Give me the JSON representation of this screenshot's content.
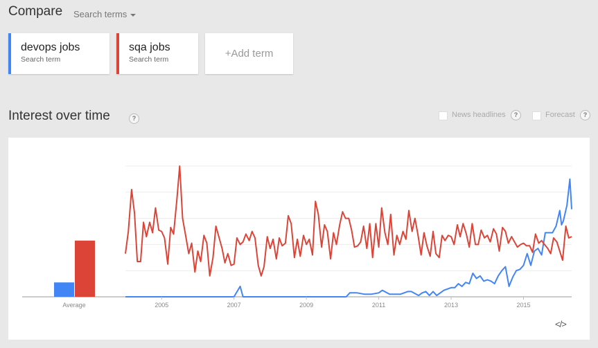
{
  "header": {
    "title": "Compare",
    "search_terms_dropdown": "Search terms"
  },
  "terms": [
    {
      "name": "devops jobs",
      "subtitle": "Search term",
      "color": "#4285f4"
    },
    {
      "name": "sqa jobs",
      "subtitle": "Search term",
      "color": "#db4437"
    }
  ],
  "add_term": {
    "plus": "+",
    "label": "Add term"
  },
  "section": {
    "title": "Interest over time",
    "help": "?",
    "news_headlines": "News headlines",
    "forecast": "Forecast"
  },
  "embed": "</>",
  "chart_data": [
    {
      "type": "bar",
      "categories": [
        "Average"
      ],
      "series": [
        {
          "name": "devops jobs",
          "values": [
            11
          ],
          "color": "#4285f4"
        },
        {
          "name": "sqa jobs",
          "values": [
            43
          ],
          "color": "#db4437"
        }
      ],
      "ylim": [
        0,
        100
      ]
    },
    {
      "type": "line",
      "x_ticks": [
        "2005",
        "2007",
        "2009",
        "2011",
        "2013",
        "2015"
      ],
      "x_range": [
        2004.0,
        2016.33
      ],
      "ylim": [
        0,
        100
      ],
      "grid": true,
      "series": [
        {
          "name": "devops jobs",
          "color": "#4285f4",
          "points": [
            [
              2004.0,
              0
            ],
            [
              2006.0,
              0
            ],
            [
              2007.0,
              0
            ],
            [
              2007.17,
              8
            ],
            [
              2007.25,
              0
            ],
            [
              2010.0,
              0
            ],
            [
              2010.1,
              0
            ],
            [
              2010.2,
              3
            ],
            [
              2010.4,
              3
            ],
            [
              2010.6,
              2
            ],
            [
              2010.8,
              2
            ],
            [
              2011.0,
              3
            ],
            [
              2011.1,
              5
            ],
            [
              2011.3,
              2
            ],
            [
              2011.6,
              2
            ],
            [
              2011.8,
              4
            ],
            [
              2011.9,
              4
            ],
            [
              2012.1,
              1
            ],
            [
              2012.2,
              3
            ],
            [
              2012.3,
              4
            ],
            [
              2012.4,
              1
            ],
            [
              2012.5,
              4
            ],
            [
              2012.6,
              1
            ],
            [
              2012.7,
              3
            ],
            [
              2012.8,
              5
            ],
            [
              2012.9,
              6
            ],
            [
              2013.0,
              7
            ],
            [
              2013.1,
              7
            ],
            [
              2013.2,
              10
            ],
            [
              2013.3,
              8
            ],
            [
              2013.4,
              11
            ],
            [
              2013.5,
              10
            ],
            [
              2013.6,
              18
            ],
            [
              2013.7,
              14
            ],
            [
              2013.8,
              16
            ],
            [
              2013.9,
              12
            ],
            [
              2014.0,
              13
            ],
            [
              2014.1,
              12
            ],
            [
              2014.2,
              10
            ],
            [
              2014.3,
              16
            ],
            [
              2014.4,
              20
            ],
            [
              2014.5,
              23
            ],
            [
              2014.6,
              8
            ],
            [
              2014.7,
              15
            ],
            [
              2014.8,
              20
            ],
            [
              2014.9,
              21
            ],
            [
              2015.0,
              24
            ],
            [
              2015.1,
              33
            ],
            [
              2015.2,
              24
            ],
            [
              2015.3,
              35
            ],
            [
              2015.4,
              37
            ],
            [
              2015.5,
              32
            ],
            [
              2015.6,
              49
            ],
            [
              2015.7,
              49
            ],
            [
              2015.8,
              49
            ],
            [
              2015.9,
              54
            ],
            [
              2016.0,
              66
            ],
            [
              2016.05,
              55
            ],
            [
              2016.1,
              58
            ],
            [
              2016.2,
              70
            ],
            [
              2016.28,
              90
            ],
            [
              2016.33,
              67
            ]
          ]
        },
        {
          "name": "sqa jobs",
          "color": "#db4437",
          "points": [
            [
              2004.0,
              33
            ],
            [
              2004.08,
              50
            ],
            [
              2004.17,
              82
            ],
            [
              2004.25,
              64
            ],
            [
              2004.33,
              27
            ],
            [
              2004.42,
              27
            ],
            [
              2004.5,
              57
            ],
            [
              2004.58,
              46
            ],
            [
              2004.67,
              57
            ],
            [
              2004.75,
              49
            ],
            [
              2004.83,
              68
            ],
            [
              2004.92,
              51
            ],
            [
              2005.0,
              50
            ],
            [
              2005.08,
              45
            ],
            [
              2005.17,
              25
            ],
            [
              2005.25,
              53
            ],
            [
              2005.33,
              48
            ],
            [
              2005.42,
              74
            ],
            [
              2005.5,
              100
            ],
            [
              2005.58,
              60
            ],
            [
              2005.67,
              46
            ],
            [
              2005.75,
              33
            ],
            [
              2005.83,
              41
            ],
            [
              2005.92,
              19
            ],
            [
              2006.0,
              35
            ],
            [
              2006.08,
              27
            ],
            [
              2006.17,
              47
            ],
            [
              2006.25,
              41
            ],
            [
              2006.33,
              16
            ],
            [
              2006.42,
              30
            ],
            [
              2006.5,
              54
            ],
            [
              2006.58,
              46
            ],
            [
              2006.67,
              37
            ],
            [
              2006.75,
              26
            ],
            [
              2006.83,
              33
            ],
            [
              2006.92,
              24
            ],
            [
              2007.0,
              25
            ],
            [
              2007.08,
              45
            ],
            [
              2007.17,
              40
            ],
            [
              2007.25,
              42
            ],
            [
              2007.33,
              48
            ],
            [
              2007.42,
              43
            ],
            [
              2007.5,
              50
            ],
            [
              2007.58,
              45
            ],
            [
              2007.67,
              24
            ],
            [
              2007.75,
              16
            ],
            [
              2007.83,
              23
            ],
            [
              2007.92,
              46
            ],
            [
              2008.0,
              37
            ],
            [
              2008.08,
              44
            ],
            [
              2008.17,
              29
            ],
            [
              2008.25,
              45
            ],
            [
              2008.33,
              39
            ],
            [
              2008.42,
              41
            ],
            [
              2008.5,
              62
            ],
            [
              2008.58,
              56
            ],
            [
              2008.67,
              30
            ],
            [
              2008.75,
              44
            ],
            [
              2008.83,
              31
            ],
            [
              2008.92,
              47
            ],
            [
              2009.0,
              40
            ],
            [
              2009.08,
              44
            ],
            [
              2009.17,
              32
            ],
            [
              2009.25,
              73
            ],
            [
              2009.33,
              63
            ],
            [
              2009.42,
              38
            ],
            [
              2009.5,
              55
            ],
            [
              2009.58,
              50
            ],
            [
              2009.67,
              29
            ],
            [
              2009.75,
              49
            ],
            [
              2009.83,
              40
            ],
            [
              2009.92,
              55
            ],
            [
              2010.0,
              65
            ],
            [
              2010.08,
              60
            ],
            [
              2010.17,
              60
            ],
            [
              2010.25,
              51
            ],
            [
              2010.33,
              38
            ],
            [
              2010.42,
              39
            ],
            [
              2010.5,
              42
            ],
            [
              2010.58,
              54
            ],
            [
              2010.67,
              37
            ],
            [
              2010.75,
              56
            ],
            [
              2010.83,
              30
            ],
            [
              2010.92,
              56
            ],
            [
              2011.0,
              38
            ],
            [
              2011.08,
              68
            ],
            [
              2011.17,
              49
            ],
            [
              2011.25,
              40
            ],
            [
              2011.33,
              63
            ],
            [
              2011.42,
              32
            ],
            [
              2011.5,
              47
            ],
            [
              2011.58,
              40
            ],
            [
              2011.67,
              50
            ],
            [
              2011.75,
              44
            ],
            [
              2011.83,
              66
            ],
            [
              2011.92,
              50
            ],
            [
              2012.0,
              60
            ],
            [
              2012.08,
              48
            ],
            [
              2012.17,
              32
            ],
            [
              2012.25,
              49
            ],
            [
              2012.33,
              39
            ],
            [
              2012.42,
              31
            ],
            [
              2012.5,
              50
            ],
            [
              2012.58,
              33
            ],
            [
              2012.67,
              30
            ],
            [
              2012.75,
              47
            ],
            [
              2012.83,
              43
            ],
            [
              2012.92,
              47
            ],
            [
              2013.0,
              46
            ],
            [
              2013.08,
              40
            ],
            [
              2013.17,
              55
            ],
            [
              2013.25,
              46
            ],
            [
              2013.33,
              56
            ],
            [
              2013.42,
              48
            ],
            [
              2013.5,
              38
            ],
            [
              2013.58,
              56
            ],
            [
              2013.67,
              40
            ],
            [
              2013.75,
              40
            ],
            [
              2013.83,
              51
            ],
            [
              2013.92,
              45
            ],
            [
              2014.0,
              47
            ],
            [
              2014.08,
              42
            ],
            [
              2014.17,
              52
            ],
            [
              2014.25,
              48
            ],
            [
              2014.33,
              35
            ],
            [
              2014.42,
              53
            ],
            [
              2014.5,
              50
            ],
            [
              2014.58,
              41
            ],
            [
              2014.67,
              46
            ],
            [
              2014.75,
              42
            ],
            [
              2014.83,
              38
            ],
            [
              2014.92,
              40
            ],
            [
              2015.0,
              41
            ],
            [
              2015.08,
              39
            ],
            [
              2015.17,
              39
            ],
            [
              2015.25,
              34
            ],
            [
              2015.33,
              48
            ],
            [
              2015.42,
              41
            ],
            [
              2015.5,
              43
            ],
            [
              2015.58,
              40
            ],
            [
              2015.67,
              37
            ],
            [
              2015.75,
              33
            ],
            [
              2015.83,
              45
            ],
            [
              2015.92,
              42
            ],
            [
              2016.0,
              35
            ],
            [
              2016.08,
              28
            ],
            [
              2016.17,
              54
            ],
            [
              2016.25,
              45
            ],
            [
              2016.33,
              46
            ]
          ]
        }
      ]
    }
  ]
}
